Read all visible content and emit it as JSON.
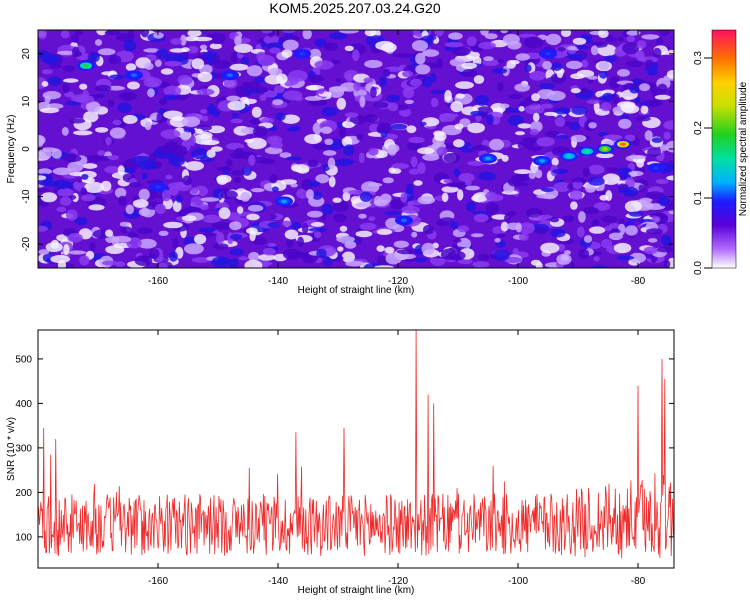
{
  "figure": {
    "title": "KOM5.2025.207.03.24.G20"
  },
  "chart_data": [
    {
      "type": "heatmap",
      "xlabel": "Height of straight line (km)",
      "ylabel": "Frequency (Hz)",
      "xlim": [
        -180,
        -74
      ],
      "ylim": [
        -25,
        25
      ],
      "xticks": [
        -160,
        -140,
        -120,
        -100,
        -80
      ],
      "yticks": [
        -20,
        -10,
        0,
        10,
        20
      ],
      "colorbar": {
        "label": "Normalized spectral amplitude",
        "range": [
          0.0,
          0.34
        ],
        "ticks": [
          "0.0",
          "0.1",
          "0.2",
          "0.3"
        ]
      },
      "features": [
        {
          "x": -82.5,
          "y": 1,
          "value": 0.3
        },
        {
          "x": -85.5,
          "y": 0,
          "value": 0.22
        },
        {
          "x": -88.5,
          "y": -0.5,
          "value": 0.16
        },
        {
          "x": -91.5,
          "y": -1.5,
          "value": 0.14
        },
        {
          "x": -96,
          "y": -2.5,
          "value": 0.12
        },
        {
          "x": -105,
          "y": -2,
          "value": 0.12
        },
        {
          "x": -172,
          "y": 17.5,
          "value": 0.18
        },
        {
          "x": -164,
          "y": 15.5,
          "value": 0.11
        },
        {
          "x": -148,
          "y": 15.5,
          "value": 0.11
        },
        {
          "x": -160,
          "y": -8,
          "value": 0.1
        },
        {
          "x": -139,
          "y": -11,
          "value": 0.12
        },
        {
          "x": -119,
          "y": -15,
          "value": 0.11
        },
        {
          "x": -77,
          "y": -4,
          "value": 0.1
        },
        {
          "x": -136,
          "y": 20,
          "value": 0.1
        },
        {
          "x": -95,
          "y": 20,
          "value": 0.1
        }
      ]
    },
    {
      "type": "line",
      "xlabel": "Height of straight line (km)",
      "ylabel": "SNR (10 * v/v)",
      "xlim": [
        -180,
        -74
      ],
      "ylim": [
        30,
        565
      ],
      "xticks": [
        -160,
        -140,
        -120,
        -100,
        -80
      ],
      "yticks": [
        100,
        200,
        300,
        400,
        500
      ],
      "color": "#ee2a2a",
      "baseline_mean": 120,
      "peaks": [
        {
          "x": -117,
          "y": 565
        },
        {
          "x": -76,
          "y": 500
        },
        {
          "x": -75.5,
          "y": 455
        },
        {
          "x": -80,
          "y": 440
        },
        {
          "x": -115,
          "y": 420
        },
        {
          "x": -114,
          "y": 400
        },
        {
          "x": -179,
          "y": 345
        },
        {
          "x": -177,
          "y": 320
        },
        {
          "x": -137,
          "y": 335
        },
        {
          "x": -129,
          "y": 345
        }
      ]
    }
  ]
}
